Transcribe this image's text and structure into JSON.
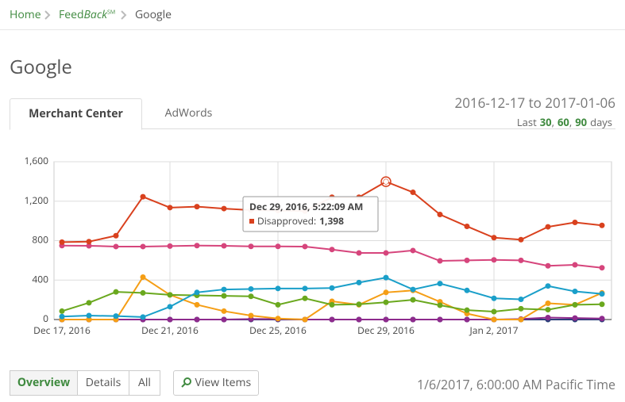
{
  "breadcrumb": {
    "home": "Home",
    "feed": "Feed",
    "back": "Back",
    "sm": "SM",
    "current": "Google"
  },
  "page": {
    "title": "Google",
    "tabs": [
      "Merchant Center",
      "AdWords"
    ],
    "date_range": "2016-12-17 to 2017-01-06",
    "last": "Last",
    "ranges": [
      "30",
      "60",
      "90"
    ],
    "separator": ",",
    "days": "days",
    "view_buttons": [
      "Overview",
      "Details",
      "All"
    ],
    "view_items": "View Items",
    "timestamp": "1/6/2017, 6:00:00 AM Pacific Time"
  },
  "chart_data": {
    "type": "line",
    "categories": [
      "Dec 17, 2016",
      null,
      null,
      null,
      "Dec 21, 2016",
      null,
      null,
      null,
      "Dec 25, 2016",
      null,
      null,
      null,
      "Dec 29, 2016",
      null,
      null,
      null,
      "Jan 2, 2017",
      null,
      null,
      null,
      null
    ],
    "ylim": [
      0,
      1600
    ],
    "yticks": [
      0,
      400,
      800,
      {
        "value": 1200,
        "label": "1,200"
      },
      {
        "value": 1600,
        "label": "1,600"
      }
    ],
    "grid": true,
    "series": [
      {
        "name": "Disapproved",
        "color": "#d9411e",
        "values": [
          785,
          790,
          850,
          1245,
          1135,
          1145,
          1125,
          1110,
          1105,
          1100,
          1240,
          1240,
          1398,
          1290,
          1065,
          945,
          830,
          810,
          940,
          985,
          955
        ]
      },
      {
        "color": "#d6457c",
        "values": [
          750,
          748,
          740,
          740,
          745,
          750,
          748,
          742,
          742,
          740,
          710,
          675,
          675,
          700,
          595,
          600,
          605,
          600,
          545,
          555,
          525
        ]
      },
      {
        "color": "#1a9fc9",
        "values": [
          30,
          40,
          35,
          25,
          130,
          275,
          305,
          310,
          315,
          315,
          320,
          375,
          425,
          305,
          365,
          295,
          215,
          205,
          340,
          285,
          260
        ]
      },
      {
        "color": "#6aa81e",
        "values": [
          85,
          170,
          280,
          270,
          250,
          245,
          240,
          235,
          150,
          215,
          150,
          155,
          175,
          200,
          145,
          95,
          80,
          110,
          100,
          150,
          155
        ]
      },
      {
        "color": "#f59e15",
        "values": [
          0,
          0,
          0,
          430,
          250,
          150,
          85,
          40,
          10,
          0,
          185,
          150,
          275,
          295,
          180,
          60,
          0,
          0,
          165,
          150,
          270
        ]
      },
      {
        "color": "#8e2b8d",
        "values": [
          0,
          0,
          0,
          0,
          0,
          0,
          0,
          5,
          5,
          0,
          0,
          0,
          0,
          0,
          0,
          0,
          0,
          5,
          20,
          15,
          10
        ]
      },
      {
        "color": "#2c3e7a",
        "values": [
          0,
          0,
          0,
          0,
          0,
          0,
          0,
          0,
          0,
          0,
          0,
          0,
          0,
          0,
          0,
          0,
          0,
          0,
          0,
          0,
          0
        ]
      }
    ],
    "tooltip": {
      "index": 12,
      "title": "Dec 29, 2016, 5:22:09 AM",
      "value_label": "1,398"
    }
  }
}
